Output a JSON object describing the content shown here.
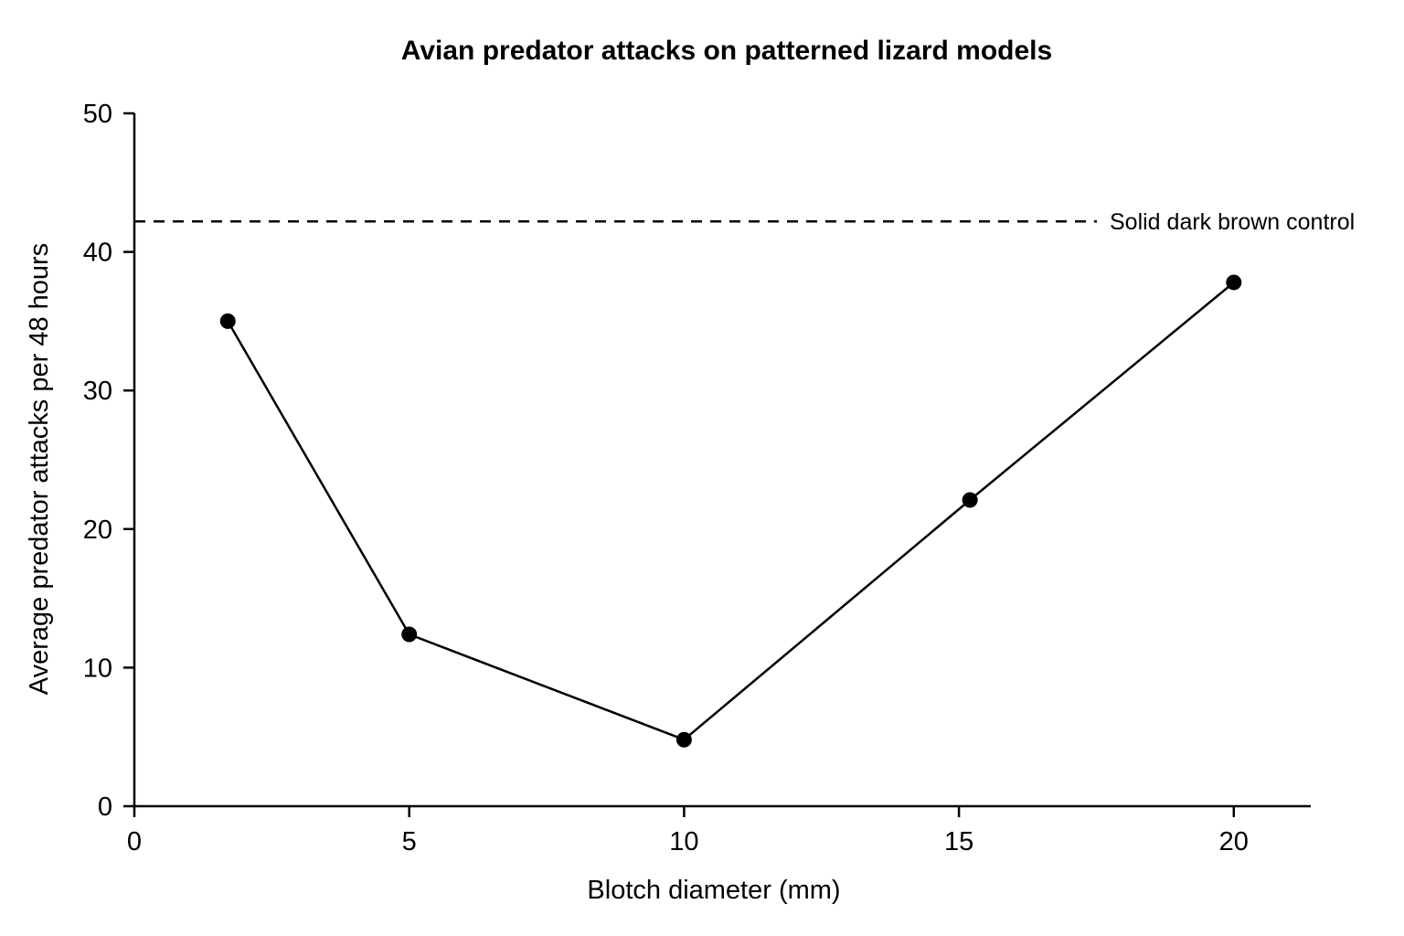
{
  "chart_data": {
    "type": "line",
    "title": "Avian predator attacks on patterned lizard models",
    "xlabel": "Blotch diameter (mm)",
    "ylabel": "Average predator attacks per 48 hours",
    "xlim": [
      0,
      21.4
    ],
    "ylim": [
      0,
      50
    ],
    "xticks": [
      0,
      5,
      10,
      15,
      20
    ],
    "yticks": [
      0,
      10,
      20,
      30,
      40,
      50
    ],
    "grid": false,
    "series": [
      {
        "x": [
          1.7,
          5,
          10,
          15.2,
          20
        ],
        "y": [
          35,
          12.4,
          4.8,
          22.1,
          37.8
        ]
      }
    ],
    "reference_line": {
      "label": "Solid dark brown control",
      "y": 42.2
    }
  }
}
